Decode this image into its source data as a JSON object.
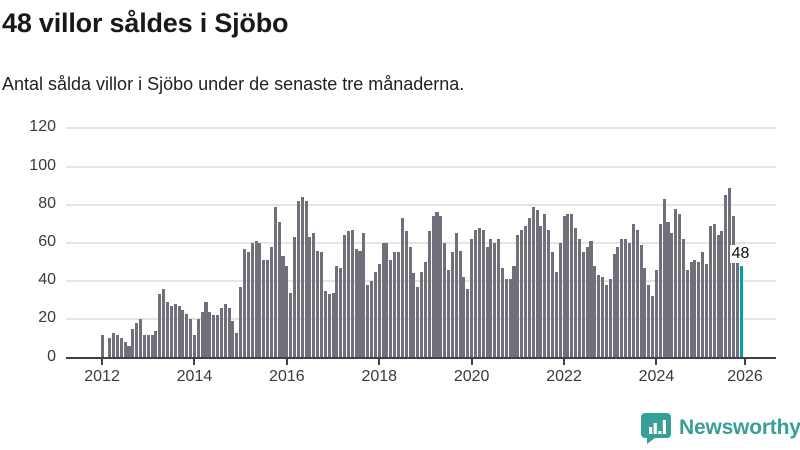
{
  "header": {
    "title": "48 villor såldes i Sjöbo",
    "subtitle": "Antal sålda villor i Sjöbo under de senaste tre månaderna."
  },
  "chart_data": {
    "type": "bar",
    "title": "48 villor såldes i Sjöbo",
    "xlabel": "",
    "ylabel": "",
    "ylim": [
      0,
      120
    ],
    "y_ticks": [
      0,
      20,
      40,
      60,
      80,
      100,
      120
    ],
    "grid": true,
    "frequency": "monthly",
    "start_period": "2012-01",
    "x_ticks": [
      {
        "label": "2012",
        "month_index": 0
      },
      {
        "label": "2014",
        "month_index": 24
      },
      {
        "label": "2016",
        "month_index": 48
      },
      {
        "label": "2018",
        "month_index": 72
      },
      {
        "label": "2020",
        "month_index": 96
      },
      {
        "label": "2022",
        "month_index": 120
      },
      {
        "label": "2024",
        "month_index": 144
      },
      {
        "label": "2026",
        "month_index": 167
      }
    ],
    "values": [
      12,
      0,
      10,
      13,
      12,
      10,
      8,
      6,
      15,
      18,
      20,
      12,
      12,
      12,
      14,
      33,
      36,
      29,
      27,
      28,
      27,
      25,
      23,
      20,
      12,
      20,
      24,
      29,
      24,
      22,
      22,
      26,
      28,
      26,
      19,
      13,
      37,
      57,
      55,
      60,
      61,
      60,
      51,
      51,
      58,
      79,
      71,
      53,
      48,
      34,
      63,
      82,
      84,
      82,
      63,
      65,
      56,
      55,
      35,
      33,
      34,
      48,
      47,
      64,
      66,
      67,
      57,
      56,
      65,
      38,
      40,
      45,
      49,
      60,
      60,
      51,
      55,
      55,
      73,
      66,
      58,
      44,
      37,
      45,
      50,
      66,
      74,
      76,
      74,
      60,
      46,
      55,
      65,
      56,
      42,
      36,
      62,
      67,
      68,
      67,
      58,
      62,
      60,
      62,
      47,
      41,
      41,
      48,
      64,
      67,
      69,
      73,
      79,
      77,
      69,
      75,
      67,
      55,
      45,
      60,
      74,
      75,
      75,
      68,
      62,
      55,
      58,
      61,
      48,
      43,
      42,
      38,
      41,
      54,
      58,
      62,
      62,
      60,
      70,
      67,
      59,
      47,
      38,
      32,
      46,
      70,
      83,
      71,
      65,
      78,
      75,
      62,
      46,
      50,
      51,
      50,
      55,
      49,
      69,
      70,
      64,
      66,
      85,
      89,
      74,
      54,
      48
    ],
    "highlight_index": 166,
    "highlight_value": 48,
    "highlight_label": "48",
    "bar_color": "#70707a",
    "highlight_color": "#00a1a1",
    "gridline_color": "#e4e4e4",
    "axis_color": "#414141"
  },
  "branding": {
    "logo_text": "Newsworthy",
    "logo_color": "#389f97",
    "logo_icon": "bar-chart-speech-bubble-icon"
  }
}
